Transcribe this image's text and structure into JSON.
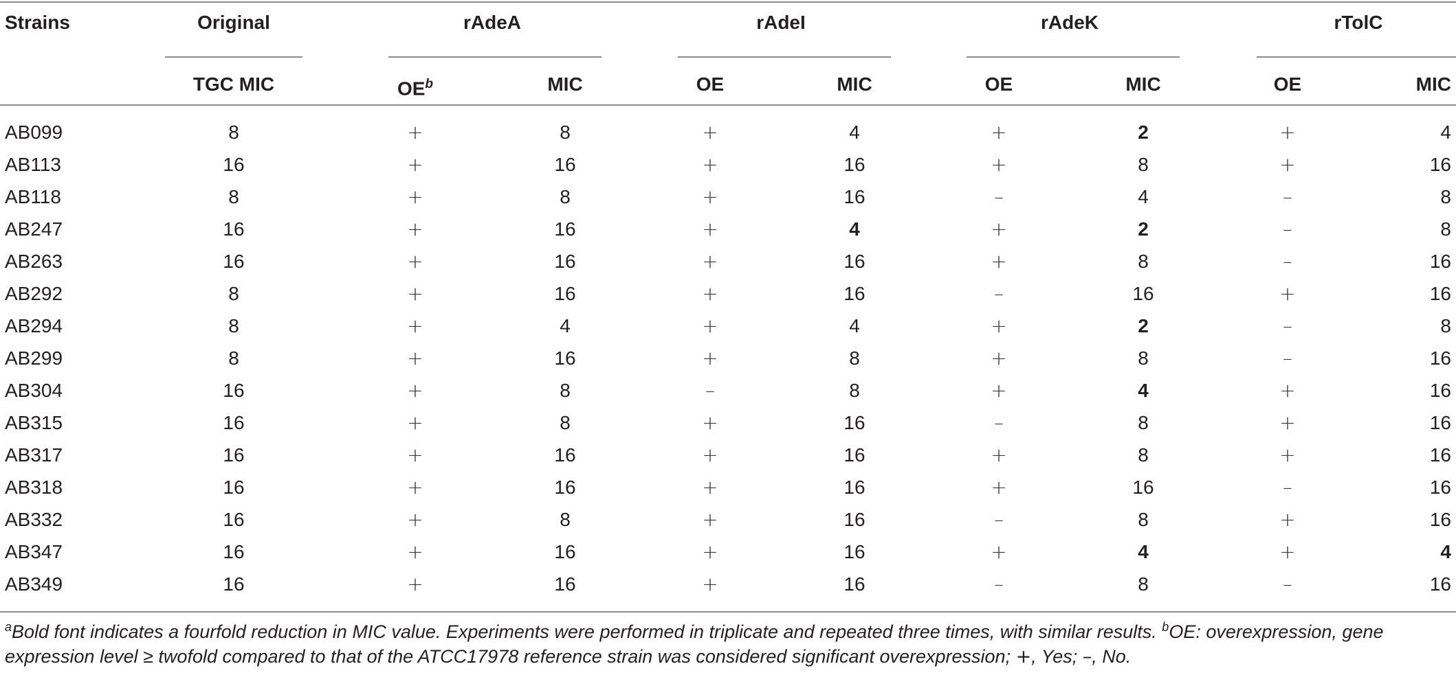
{
  "header": {
    "strains": "Strains",
    "groups": [
      "Original",
      "rAdeA",
      "rAdeI",
      "rAdeK",
      "rTolC"
    ],
    "sub": {
      "tgc_mic": "TGC MIC",
      "oe": "OE",
      "oe_sup": "b",
      "mic": "MIC"
    }
  },
  "rows": [
    {
      "strain": "AB099",
      "tgc": "8",
      "a_oe": "+",
      "a_mic": "8",
      "i_oe": "+",
      "i_mic": "4",
      "k_oe": "+",
      "k_mic": "2",
      "t_oe": "+",
      "t_mic": "4",
      "bold": [
        "k_mic"
      ]
    },
    {
      "strain": "AB113",
      "tgc": "16",
      "a_oe": "+",
      "a_mic": "16",
      "i_oe": "+",
      "i_mic": "16",
      "k_oe": "+",
      "k_mic": "8",
      "t_oe": "+",
      "t_mic": "16",
      "bold": []
    },
    {
      "strain": "AB118",
      "tgc": "8",
      "a_oe": "+",
      "a_mic": "8",
      "i_oe": "+",
      "i_mic": "16",
      "k_oe": "–",
      "k_mic": "4",
      "t_oe": "–",
      "t_mic": "8",
      "bold": []
    },
    {
      "strain": "AB247",
      "tgc": "16",
      "a_oe": "+",
      "a_mic": "16",
      "i_oe": "+",
      "i_mic": "4",
      "k_oe": "+",
      "k_mic": "2",
      "t_oe": "–",
      "t_mic": "8",
      "bold": [
        "i_mic",
        "k_mic"
      ]
    },
    {
      "strain": "AB263",
      "tgc": "16",
      "a_oe": "+",
      "a_mic": "16",
      "i_oe": "+",
      "i_mic": "16",
      "k_oe": "+",
      "k_mic": "8",
      "t_oe": "–",
      "t_mic": "16",
      "bold": []
    },
    {
      "strain": "AB292",
      "tgc": "8",
      "a_oe": "+",
      "a_mic": "16",
      "i_oe": "+",
      "i_mic": "16",
      "k_oe": "–",
      "k_mic": "16",
      "t_oe": "+",
      "t_mic": "16",
      "bold": []
    },
    {
      "strain": "AB294",
      "tgc": "8",
      "a_oe": "+",
      "a_mic": "4",
      "i_oe": "+",
      "i_mic": "4",
      "k_oe": "+",
      "k_mic": "2",
      "t_oe": "–",
      "t_mic": "8",
      "bold": [
        "k_mic"
      ]
    },
    {
      "strain": "AB299",
      "tgc": "8",
      "a_oe": "+",
      "a_mic": "16",
      "i_oe": "+",
      "i_mic": "8",
      "k_oe": "+",
      "k_mic": "8",
      "t_oe": "–",
      "t_mic": "16",
      "bold": []
    },
    {
      "strain": "AB304",
      "tgc": "16",
      "a_oe": "+",
      "a_mic": "8",
      "i_oe": "–",
      "i_mic": "8",
      "k_oe": "+",
      "k_mic": "4",
      "t_oe": "+",
      "t_mic": "16",
      "bold": [
        "k_mic"
      ]
    },
    {
      "strain": "AB315",
      "tgc": "16",
      "a_oe": "+",
      "a_mic": "8",
      "i_oe": "+",
      "i_mic": "16",
      "k_oe": "–",
      "k_mic": "8",
      "t_oe": "+",
      "t_mic": "16",
      "bold": []
    },
    {
      "strain": "AB317",
      "tgc": "16",
      "a_oe": "+",
      "a_mic": "16",
      "i_oe": "+",
      "i_mic": "16",
      "k_oe": "+",
      "k_mic": "8",
      "t_oe": "+",
      "t_mic": "16",
      "bold": []
    },
    {
      "strain": "AB318",
      "tgc": "16",
      "a_oe": "+",
      "a_mic": "16",
      "i_oe": "+",
      "i_mic": "16",
      "k_oe": "+",
      "k_mic": "16",
      "t_oe": "–",
      "t_mic": "16",
      "bold": []
    },
    {
      "strain": "AB332",
      "tgc": "16",
      "a_oe": "+",
      "a_mic": "8",
      "i_oe": "+",
      "i_mic": "16",
      "k_oe": "–",
      "k_mic": "8",
      "t_oe": "+",
      "t_mic": "16",
      "bold": []
    },
    {
      "strain": "AB347",
      "tgc": "16",
      "a_oe": "+",
      "a_mic": "16",
      "i_oe": "+",
      "i_mic": "16",
      "k_oe": "+",
      "k_mic": "4",
      "t_oe": "+",
      "t_mic": "4",
      "bold": [
        "k_mic",
        "t_mic"
      ]
    },
    {
      "strain": "AB349",
      "tgc": "16",
      "a_oe": "+",
      "a_mic": "16",
      "i_oe": "+",
      "i_mic": "16",
      "k_oe": "–",
      "k_mic": "8",
      "t_oe": "–",
      "t_mic": "16",
      "bold": []
    }
  ],
  "footnote": {
    "a_sup": "a",
    "a_text": "Bold font indicates a fourfold reduction in MIC value. Experiments were performed in triplicate and repeated three times, with similar results. ",
    "b_sup": "b",
    "b_text_1": "OE: overexpression, gene expression level ≥ twofold compared to that of the ATCC17978 reference strain was considered significant overexpression; ",
    "plus": "+",
    "yes": ", Yes; ",
    "minus": "–",
    "no": ", No."
  }
}
